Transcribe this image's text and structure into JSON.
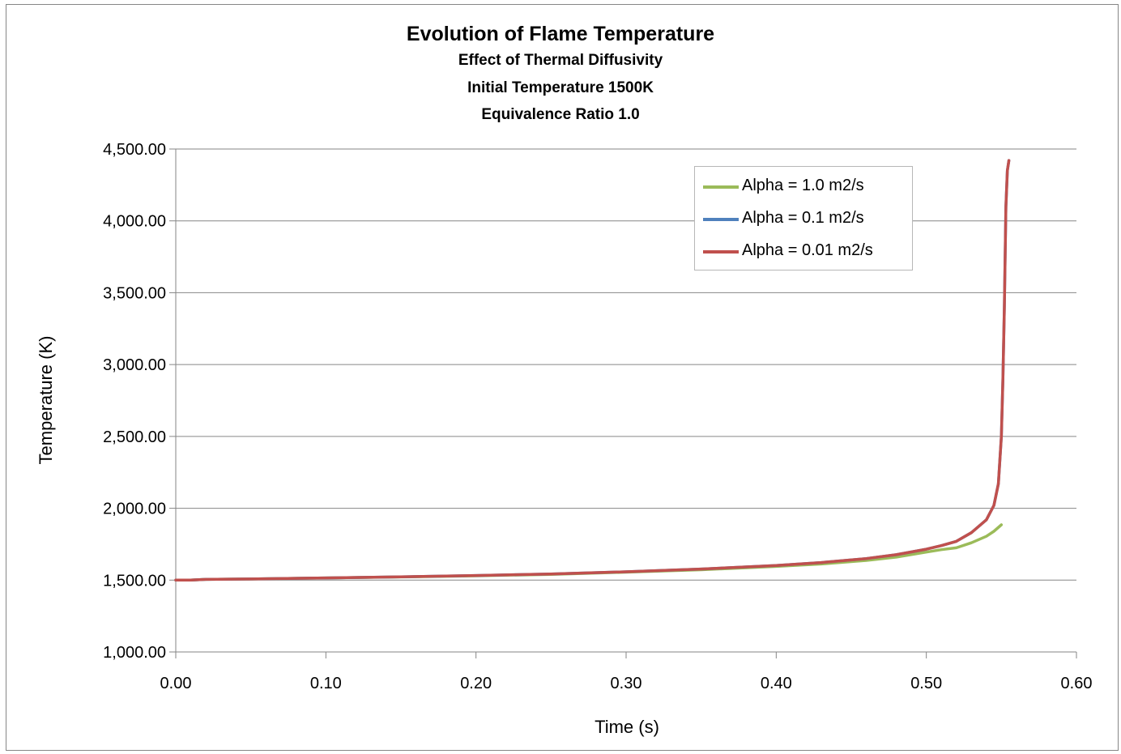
{
  "chart_data": {
    "type": "line",
    "title": "Evolution of Flame Temperature",
    "subtitles": [
      "Effect of Thermal Diffusivity",
      "Initial Temperature 1500K",
      "Equivalence Ratio 1.0"
    ],
    "xlabel": "Time (s)",
    "ylabel": "Temperature (K)",
    "xlim": [
      0,
      0.6
    ],
    "ylim": [
      1000,
      4500
    ],
    "xticks": [
      "0.00",
      "0.10",
      "0.20",
      "0.30",
      "0.40",
      "0.50",
      "0.60"
    ],
    "yticks": [
      "1,000.00",
      "1,500.00",
      "2,000.00",
      "2,500.00",
      "3,000.00",
      "3,500.00",
      "4,000.00",
      "4,500.00"
    ],
    "grid": "horizontal",
    "legend_position": "top-right",
    "series": [
      {
        "name": "Alpha = 1.0 m2/s",
        "color": "#9bbb59",
        "x": [
          0.0,
          0.01,
          0.02,
          0.05,
          0.1,
          0.15,
          0.2,
          0.25,
          0.3,
          0.35,
          0.4,
          0.43,
          0.46,
          0.48,
          0.5,
          0.51,
          0.52,
          0.53,
          0.54,
          0.545,
          0.55
        ],
        "y": [
          1500,
          1500,
          1505,
          1508,
          1515,
          1522,
          1530,
          1540,
          1555,
          1572,
          1595,
          1612,
          1637,
          1660,
          1695,
          1712,
          1725,
          1760,
          1805,
          1840,
          1885
        ]
      },
      {
        "name": "Alpha = 0.1 m2/s",
        "color": "#4f81bd",
        "x": [
          0.0,
          0.01,
          0.02,
          0.05,
          0.1,
          0.15,
          0.2,
          0.25,
          0.3,
          0.35,
          0.4,
          0.43,
          0.46,
          0.48,
          0.5,
          0.51,
          0.52,
          0.53,
          0.54,
          0.545,
          0.548,
          0.55,
          0.551,
          0.552,
          0.553,
          0.554,
          0.555
        ],
        "y": [
          1500,
          1500,
          1505,
          1508,
          1515,
          1523,
          1532,
          1543,
          1558,
          1577,
          1602,
          1622,
          1650,
          1677,
          1715,
          1740,
          1770,
          1830,
          1920,
          2020,
          2170,
          2500,
          2900,
          3400,
          4100,
          4350,
          4420
        ]
      },
      {
        "name": "Alpha = 0.01 m2/s",
        "color": "#c0504d",
        "x": [
          0.0,
          0.01,
          0.02,
          0.05,
          0.1,
          0.15,
          0.2,
          0.25,
          0.3,
          0.35,
          0.4,
          0.43,
          0.46,
          0.48,
          0.5,
          0.51,
          0.52,
          0.53,
          0.54,
          0.545,
          0.548,
          0.55,
          0.551,
          0.552,
          0.553,
          0.554,
          0.555
        ],
        "y": [
          1500,
          1500,
          1505,
          1508,
          1515,
          1523,
          1532,
          1543,
          1558,
          1577,
          1602,
          1622,
          1650,
          1677,
          1715,
          1740,
          1770,
          1830,
          1920,
          2020,
          2170,
          2500,
          2900,
          3400,
          4100,
          4350,
          4420
        ]
      }
    ]
  }
}
